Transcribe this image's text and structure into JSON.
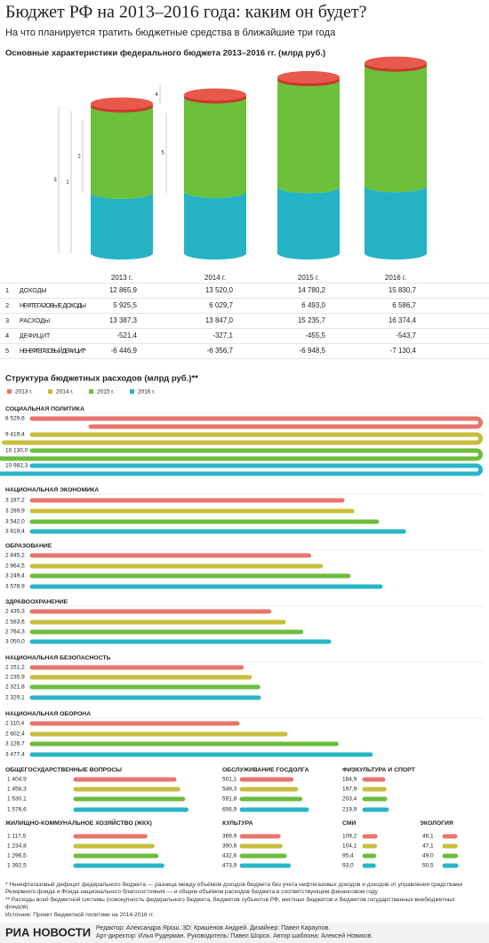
{
  "title": "Бюджет РФ на 2013–2016 года: каким он будет?",
  "subtitle": "На что планируется тратить бюджетные средства в ближайшие три года",
  "chart_data": [
    {
      "type": "cylinder",
      "title": "Основные характеристики федерального бюджета 2013–2016 гг. (млрд руб.)",
      "categories": [
        "2013 г.",
        "2014 г.",
        "2015 г.",
        "2016 г."
      ],
      "colors": {
        "base": "#25b3c4",
        "top": "#6cc03a",
        "cap": "#e8584b"
      },
      "series": [
        {
          "label": "1",
          "name": "ДОХОДЫ",
          "values": [
            12865.9,
            13520.0,
            14780.2,
            15830.7
          ],
          "value_labels": [
            "12 865,9",
            "13 520,0",
            "14 780,2",
            "15 830,7"
          ]
        },
        {
          "label": "2",
          "name": "НЕФТЕГАЗОВЫЕ ДОХОДЫ",
          "values": [
            5925.5,
            6029.7,
            6493.0,
            6586.7
          ],
          "value_labels": [
            "5 925,5",
            "6 029,7",
            "6 493,0",
            "6 586,7"
          ]
        },
        {
          "label": "3",
          "name": "РАСХОДЫ",
          "values": [
            13387.3,
            13847.0,
            15235.7,
            16374.4
          ],
          "value_labels": [
            "13 387,3",
            "13 847,0",
            "15 235,7",
            "16 374,4"
          ]
        },
        {
          "label": "4",
          "name": "ДЕФИЦИТ",
          "values": [
            -521.4,
            -327.1,
            -455.5,
            -543.7
          ],
          "value_labels": [
            "-521,4",
            "-327,1",
            "-455,5",
            "-543,7"
          ]
        },
        {
          "label": "5",
          "name": "НЕНЕФТЕГАЗОВЫЙ ДЕФИЦИТ*",
          "values": [
            -6446.9,
            -6356.7,
            -6948.5,
            -7130.4
          ],
          "value_labels": [
            "-6 446,9",
            "-6 356,7",
            "-6 948,5",
            "-7 130,4"
          ]
        }
      ]
    },
    {
      "type": "bar",
      "title": "Структура бюджетных расходов (млрд руб.)**",
      "categories": [
        "СОЦИАЛЬНАЯ ПОЛИТИКА",
        "НАЦИОНАЛЬНАЯ ЭКОНОМИКА",
        "ОБРАЗОВАНИЕ",
        "ЗДРАВООХРАНЕНИЕ",
        "НАЦИОНАЛЬНАЯ БЕЗОПАСНОСТЬ",
        "НАЦИОНАЛЬНАЯ ОБОРОНА",
        "ОБЩЕГОСУДАРСТВЕННЫЕ ВОПРОСЫ",
        "ОБСЛУЖИВАНИЕ ГОСДОЛГА",
        "ФИЗКУЛЬТУРА И СПОРТ",
        "ЖИЛИЩНО-КОММУНАЛЬНОЕ ХОЗЯЙСТВО (ЖКХ)",
        "КУЛЬТУРА",
        "СМИ",
        "ЭКОЛОГИЯ"
      ],
      "series": [
        {
          "name": "2013 г.",
          "color": "#e8756b",
          "values": [
            8529.6,
            3187.2,
            2845.2,
            2435.3,
            2151.2,
            2110.4,
            1404.9,
            501.1,
            184.9,
            1117.5,
            369.9,
            109.2,
            46.1
          ],
          "value_labels": [
            "8 529,6",
            "3 187,2",
            "2 845,2",
            "2 435,3",
            "2 151,2",
            "2 110,4",
            "1 404,9",
            "501,1",
            "184,9",
            "1 117,5",
            "369,9",
            "109,2",
            "46,1"
          ]
        },
        {
          "name": "2014 г.",
          "color": "#c9bd3b",
          "values": [
            9419.4,
            3289.9,
            2964.5,
            2583.6,
            2235.9,
            2602.4,
            1458.3,
            549.3,
            197.9,
            1234.8,
            390.6,
            104.1,
            47.1
          ],
          "value_labels": [
            "9 419,4",
            "3 289,9",
            "2 964,5",
            "2 583,6",
            "2 235,9",
            "2 602,4",
            "1 458,3",
            "549,3",
            "197,9",
            "1 234,8",
            "390,6",
            "104,1",
            "47,1"
          ]
        },
        {
          "name": "2015 г.",
          "color": "#6cbd3c",
          "values": [
            10130.0,
            3542.0,
            3249.4,
            2764.3,
            2321.8,
            3126.7,
            1530.1,
            591.8,
            203.4,
            1296.5,
            432.6,
            95.4,
            49.0
          ],
          "value_labels": [
            "10 130,0",
            "3 542,0",
            "3 249,4",
            "2 764,3",
            "2 321,8",
            "3 126,7",
            "1 530,1",
            "591,8",
            "203,4",
            "1 296,5",
            "432,6",
            "95,4",
            "49,0"
          ]
        },
        {
          "name": "2016 г.",
          "color": "#27b6c7",
          "values": [
            10982.3,
            3819.4,
            3578.9,
            3050.0,
            2329.1,
            3477.4,
            1576.6,
            656.9,
            219.9,
            1392.5,
            473.9,
            93.0,
            50.5
          ],
          "value_labels": [
            "10 982,3",
            "3 819,4",
            "3 578,9",
            "3 050,0",
            "2 329,1",
            "3 477,4",
            "1 576,6",
            "656,9",
            "219,9",
            "1 392,5",
            "473,9",
            "93,0",
            "50,5"
          ]
        }
      ]
    }
  ],
  "footnotes": [
    "* Ненефтегазовый дефицит федерального бюджета — разница между объёмом доходов бюджета без учета нефтегазовых доходов и доходов от управления средствами Резервного фонда и Фонда национального благосостояния — и общим объёмом расходов бюджета в соответствующем финансовом году",
    "** Расходы всей бюджетной системы (совокупность федерального бюджета, бюджетов субъектов РФ, местных бюджетов и бюджетов государственных внебюджетных фондов)",
    "Источник: Проект бюджетной политики на 2014-2016 гг."
  ],
  "logo": "РИА НОВОСТИ",
  "credits": [
    "Редактор: Александра Ярош. 3D: Крашенов Андрей. Дизайнер: Павел Караулов.",
    "Арт-директор: Илья Рудерман. Руководитель: Павел Шорох. Автор шаблона: Алексей Новиков."
  ]
}
